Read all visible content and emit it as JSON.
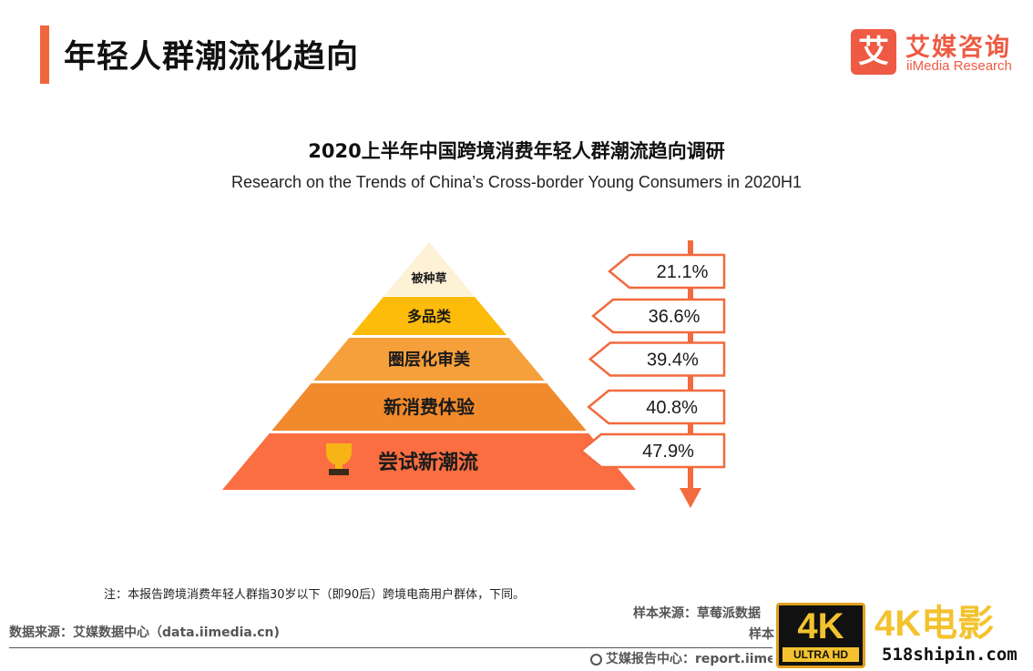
{
  "header": {
    "title": "年轻人群潮流化趋向",
    "logo_glyph": "艾",
    "brand_cn": "艾媒咨询",
    "brand_en": "iiMedia Research"
  },
  "chart_data": {
    "type": "bar",
    "title": "2020上半年中国跨境消费年轻人群潮流趋向调研",
    "subtitle": "Research on the Trends of China’s Cross-border Young Consumers in 2020H1",
    "categories": [
      "被种草",
      "多品类",
      "圈层化审美",
      "新消费体验",
      "尝试新潮流"
    ],
    "values": [
      21.1,
      36.6,
      39.4,
      40.8,
      47.9
    ],
    "value_labels": [
      "21.1%",
      "36.6%",
      "39.4%",
      "40.8%",
      "47.9%"
    ],
    "unit": "%",
    "colors": [
      "#fdf1d6",
      "#fdbb0a",
      "#f6a03b",
      "#f08a2c",
      "#fa6e42"
    ],
    "arrow_color": "#f26a3d"
  },
  "footer": {
    "note": "注：本报告跨境消费年轻人群指30岁以下（即90后）跨境电商用户群体，下同。",
    "data_source": "数据来源：艾媒数据中心（data.iimedia.cn)",
    "sample_source": "样本来源：草莓派数据",
    "sample_note": "样本",
    "report_link": "艾媒报告中心：report.iimedia.cn"
  },
  "watermark": {
    "badge": "4K",
    "badge_sub": "ULTRA HD",
    "text": "4K电影",
    "url": "518shipin.com"
  }
}
